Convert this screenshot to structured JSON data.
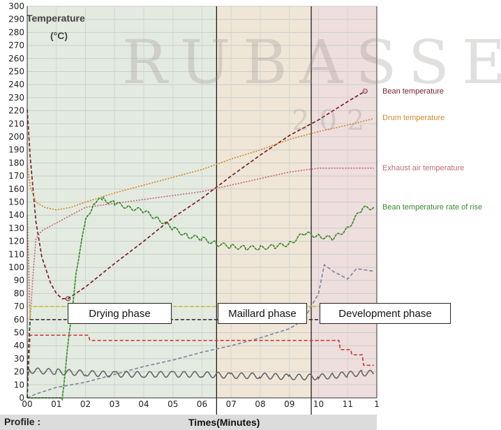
{
  "chart_data": {
    "type": "line",
    "title": "",
    "ylabel_line1": "Temperature",
    "ylabel_line2": "(°C)",
    "xlabel": "Times(Minutes)",
    "footer_label": "Profile :",
    "watermark": "RUBASSE",
    "watermark_sub": "202",
    "ylim": [
      0,
      300
    ],
    "xlim": [
      0,
      12
    ],
    "y_ticks": [
      0,
      10,
      20,
      30,
      40,
      50,
      60,
      70,
      80,
      90,
      100,
      110,
      120,
      130,
      140,
      150,
      160,
      170,
      180,
      190,
      200,
      210,
      220,
      230,
      240,
      250,
      260,
      270,
      280,
      290,
      300
    ],
    "x_tick_labels": [
      "00",
      "01",
      "02",
      "03",
      "04",
      "05",
      "06",
      "07",
      "08",
      "09",
      "10",
      "11",
      "1"
    ],
    "grid": true,
    "phases": [
      {
        "label": "Drying phase",
        "start": 0,
        "end": 6.5,
        "color": "#e3ebe0"
      },
      {
        "label": "Maillard phase",
        "start": 6.5,
        "end": 9.75,
        "color": "#efe6d8"
      },
      {
        "label": "Development phase",
        "start": 9.75,
        "end": 12,
        "color": "#efdede"
      }
    ],
    "series": [
      {
        "name": "Bean temperature",
        "color": "#7a1f2a",
        "style": "dashed",
        "x": [
          0,
          0.1,
          0.3,
          0.5,
          0.8,
          1.0,
          1.2,
          1.4,
          2,
          3,
          4,
          5,
          6,
          7,
          8,
          9,
          10,
          11,
          11.6
        ],
        "y": [
          221,
          185,
          135,
          108,
          88,
          80,
          76,
          76,
          85,
          103,
          120,
          138,
          153,
          170,
          186,
          201,
          213,
          227,
          235
        ]
      },
      {
        "name": "Drum temperature",
        "color": "#d08a2a",
        "style": "dotted",
        "x": [
          0,
          0.1,
          0.3,
          0.6,
          1.0,
          1.5,
          2,
          3,
          4,
          5,
          6,
          7,
          8,
          9,
          10,
          11,
          11.9
        ],
        "y": [
          178,
          162,
          150,
          146,
          144,
          146,
          150,
          157,
          163,
          169,
          175,
          183,
          190,
          198,
          204,
          209,
          214
        ]
      },
      {
        "name": "Exhaust air temperature",
        "color": "#c46a78",
        "style": "dotted",
        "x": [
          0,
          0.1,
          0.2,
          0.3,
          0.5,
          1,
          2,
          3,
          4,
          5,
          6,
          7,
          8,
          9,
          10,
          11,
          11.9
        ],
        "y": [
          140,
          60,
          95,
          122,
          128,
          134,
          146,
          149,
          152,
          155,
          158,
          163,
          168,
          173,
          176,
          176,
          176
        ]
      },
      {
        "name": "Bean temperature rate of rise",
        "color": "#3a8a2e",
        "style": "solid",
        "x": [
          0,
          0.1,
          0.5,
          1.2,
          1.35,
          1.7,
          2.0,
          2.3,
          2.6,
          3,
          3.5,
          4,
          4.5,
          5,
          5.5,
          6,
          6.5,
          7,
          7.5,
          8,
          8.5,
          9,
          9.5,
          10,
          10.5,
          11,
          11.5,
          11.9
        ],
        "y": [
          0,
          0,
          0,
          0,
          30,
          100,
          135,
          150,
          152,
          149,
          146,
          143,
          137,
          130,
          124,
          122,
          118,
          116,
          115,
          115,
          116,
          118,
          126,
          124,
          122,
          130,
          145,
          146
        ]
      },
      {
        "name": "",
        "color": "#7a8aa6",
        "style": "dashed",
        "x": [
          0,
          0.3,
          1,
          2,
          3,
          4,
          5,
          6,
          7,
          8,
          9,
          9.5,
          10,
          10.2,
          10.5,
          11,
          11.3,
          11.9
        ],
        "y": [
          0,
          3,
          8,
          12,
          18,
          24,
          29,
          35,
          40,
          46,
          53,
          60,
          80,
          102,
          97,
          91,
          99,
          97
        ]
      },
      {
        "name": "",
        "color": "#cc3a3a",
        "style": "dashed",
        "x": [
          0,
          0.1,
          2.1,
          2.15,
          10.7,
          10.75,
          11.1,
          11.15,
          11.5,
          11.55,
          11.9
        ],
        "y": [
          0,
          48,
          48,
          44,
          44,
          37,
          37,
          33,
          33,
          25,
          25
        ]
      },
      {
        "name": "",
        "color": "#c9c23a",
        "style": "dashed",
        "x": [
          0,
          0.05,
          0.1,
          11.9
        ],
        "y": [
          0,
          30,
          70,
          70
        ]
      },
      {
        "name": "",
        "color": "#333344",
        "style": "dashed",
        "x": [
          0,
          0.05,
          0.1,
          11.9
        ],
        "y": [
          0,
          40,
          60,
          60
        ]
      },
      {
        "name": "",
        "color": "#666666",
        "style": "noisy",
        "x": [
          0,
          0.1,
          1,
          2,
          3,
          4,
          5,
          6,
          7,
          8,
          9,
          10,
          10.5,
          11,
          11.5,
          11.9
        ],
        "y": [
          15,
          21,
          20,
          19,
          18,
          18,
          18,
          18,
          17,
          17,
          16,
          16,
          17,
          18,
          19,
          19
        ]
      }
    ]
  }
}
